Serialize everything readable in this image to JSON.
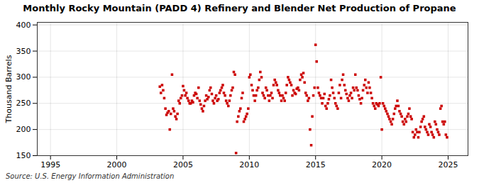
{
  "chart_data": {
    "type": "scatter",
    "title": "Monthly Rocky Mountain (PADD 4) Refinery and Blender Net Production of Propane",
    "ylabel": "Thousand Barrels",
    "source": "Source: U.S. Energy Information Administration",
    "color": "#cc0000",
    "marker": "square",
    "grid": true,
    "xlim": [
      1994.0,
      2026.5
    ],
    "ylim": [
      150,
      405
    ],
    "xticks": [
      1995,
      2000,
      2005,
      2010,
      2015,
      2020,
      2025
    ],
    "yticks": [
      150,
      200,
      250,
      300,
      350,
      400
    ],
    "x": [
      2003.25,
      2003.33,
      2003.42,
      2003.5,
      2003.58,
      2003.67,
      2003.75,
      2003.83,
      2003.92,
      2004.0,
      2004.08,
      2004.17,
      2004.25,
      2004.33,
      2004.42,
      2004.5,
      2004.58,
      2004.67,
      2004.75,
      2004.83,
      2004.92,
      2005.0,
      2005.08,
      2005.17,
      2005.25,
      2005.33,
      2005.42,
      2005.5,
      2005.58,
      2005.67,
      2005.75,
      2005.83,
      2005.92,
      2006.0,
      2006.08,
      2006.17,
      2006.25,
      2006.33,
      2006.42,
      2006.5,
      2006.58,
      2006.67,
      2006.75,
      2006.83,
      2006.92,
      2007.0,
      2007.08,
      2007.17,
      2007.25,
      2007.33,
      2007.42,
      2007.5,
      2007.58,
      2007.67,
      2007.75,
      2007.83,
      2007.92,
      2008.0,
      2008.08,
      2008.17,
      2008.25,
      2008.33,
      2008.42,
      2008.5,
      2008.58,
      2008.67,
      2008.75,
      2008.83,
      2008.92,
      2009.0,
      2009.08,
      2009.17,
      2009.25,
      2009.33,
      2009.42,
      2009.5,
      2009.58,
      2009.67,
      2009.75,
      2009.83,
      2009.92,
      2010.0,
      2010.08,
      2010.17,
      2010.25,
      2010.33,
      2010.42,
      2010.5,
      2010.58,
      2010.67,
      2010.75,
      2010.83,
      2010.92,
      2011.0,
      2011.08,
      2011.17,
      2011.25,
      2011.33,
      2011.42,
      2011.5,
      2011.58,
      2011.67,
      2011.75,
      2011.83,
      2011.92,
      2012.0,
      2012.08,
      2012.17,
      2012.25,
      2012.33,
      2012.42,
      2012.5,
      2012.58,
      2012.67,
      2012.75,
      2012.83,
      2012.92,
      2013.0,
      2013.08,
      2013.17,
      2013.25,
      2013.33,
      2013.42,
      2013.5,
      2013.58,
      2013.67,
      2013.75,
      2013.83,
      2013.92,
      2014.0,
      2014.08,
      2014.17,
      2014.25,
      2014.33,
      2014.42,
      2014.5,
      2014.58,
      2014.67,
      2014.75,
      2014.83,
      2014.92,
      2015.0,
      2015.08,
      2015.17,
      2015.25,
      2015.33,
      2015.42,
      2015.5,
      2015.58,
      2015.67,
      2015.75,
      2015.83,
      2015.92,
      2016.0,
      2016.08,
      2016.17,
      2016.25,
      2016.33,
      2016.42,
      2016.5,
      2016.58,
      2016.67,
      2016.75,
      2016.83,
      2016.92,
      2017.0,
      2017.08,
      2017.17,
      2017.25,
      2017.33,
      2017.42,
      2017.5,
      2017.58,
      2017.67,
      2017.75,
      2017.83,
      2017.92,
      2018.0,
      2018.08,
      2018.17,
      2018.25,
      2018.33,
      2018.42,
      2018.5,
      2018.58,
      2018.67,
      2018.75,
      2018.83,
      2018.92,
      2019.0,
      2019.08,
      2019.17,
      2019.25,
      2019.33,
      2019.42,
      2019.5,
      2019.58,
      2019.67,
      2019.75,
      2019.83,
      2019.92,
      2020.0,
      2020.08,
      2020.17,
      2020.25,
      2020.33,
      2020.42,
      2020.5,
      2020.58,
      2020.67,
      2020.75,
      2020.83,
      2020.92,
      2021.0,
      2021.08,
      2021.17,
      2021.25,
      2021.33,
      2021.42,
      2021.5,
      2021.58,
      2021.67,
      2021.75,
      2021.83,
      2021.92,
      2022.0,
      2022.08,
      2022.17,
      2022.25,
      2022.33,
      2022.42,
      2022.5,
      2022.58,
      2022.67,
      2022.75,
      2022.83,
      2022.92,
      2023.0,
      2023.08,
      2023.17,
      2023.25,
      2023.33,
      2023.42,
      2023.5,
      2023.58,
      2023.67,
      2023.75,
      2023.83,
      2023.92,
      2024.0,
      2024.08,
      2024.17,
      2024.25,
      2024.33,
      2024.42,
      2024.5,
      2024.58,
      2024.67,
      2024.75,
      2024.83,
      2024.92
    ],
    "values": [
      282,
      270,
      285,
      275,
      260,
      240,
      228,
      232,
      235,
      200,
      230,
      305,
      240,
      235,
      225,
      220,
      230,
      255,
      250,
      260,
      265,
      283,
      275,
      265,
      270,
      260,
      255,
      250,
      250,
      255,
      252,
      265,
      270,
      268,
      260,
      280,
      255,
      248,
      240,
      235,
      245,
      255,
      265,
      258,
      262,
      275,
      280,
      268,
      255,
      250,
      260,
      265,
      255,
      258,
      270,
      275,
      280,
      285,
      270,
      265,
      255,
      250,
      245,
      255,
      265,
      275,
      280,
      310,
      305,
      155,
      215,
      225,
      235,
      240,
      260,
      270,
      215,
      220,
      225,
      230,
      240,
      300,
      305,
      285,
      275,
      265,
      255,
      265,
      275,
      280,
      295,
      310,
      300,
      270,
      265,
      260,
      280,
      275,
      265,
      255,
      265,
      270,
      260,
      285,
      295,
      290,
      285,
      275,
      270,
      265,
      255,
      265,
      260,
      255,
      270,
      285,
      300,
      295,
      290,
      285,
      265,
      275,
      270,
      268,
      278,
      280,
      275,
      295,
      305,
      300,
      308,
      290,
      270,
      265,
      255,
      260,
      200,
      170,
      225,
      265,
      280,
      362,
      330,
      280,
      270,
      265,
      260,
      250,
      260,
      268,
      245,
      240,
      250,
      258,
      265,
      295,
      280,
      270,
      260,
      250,
      245,
      240,
      270,
      285,
      260,
      295,
      305,
      285,
      275,
      268,
      260,
      255,
      265,
      270,
      260,
      280,
      275,
      305,
      280,
      275,
      265,
      258,
      250,
      260,
      275,
      285,
      295,
      280,
      270,
      290,
      280,
      270,
      260,
      250,
      245,
      240,
      250,
      248,
      245,
      250,
      300,
      200,
      250,
      245,
      240,
      235,
      230,
      225,
      220,
      215,
      210,
      220,
      230,
      240,
      245,
      255,
      245,
      235,
      230,
      225,
      215,
      210,
      220,
      215,
      225,
      230,
      240,
      225,
      220,
      195,
      185,
      190,
      200,
      195,
      185,
      195,
      205,
      215,
      220,
      225,
      205,
      200,
      195,
      190,
      210,
      205,
      195,
      190,
      185,
      215,
      210,
      200,
      195,
      190,
      240,
      245,
      215,
      210,
      215,
      190,
      185
    ]
  }
}
